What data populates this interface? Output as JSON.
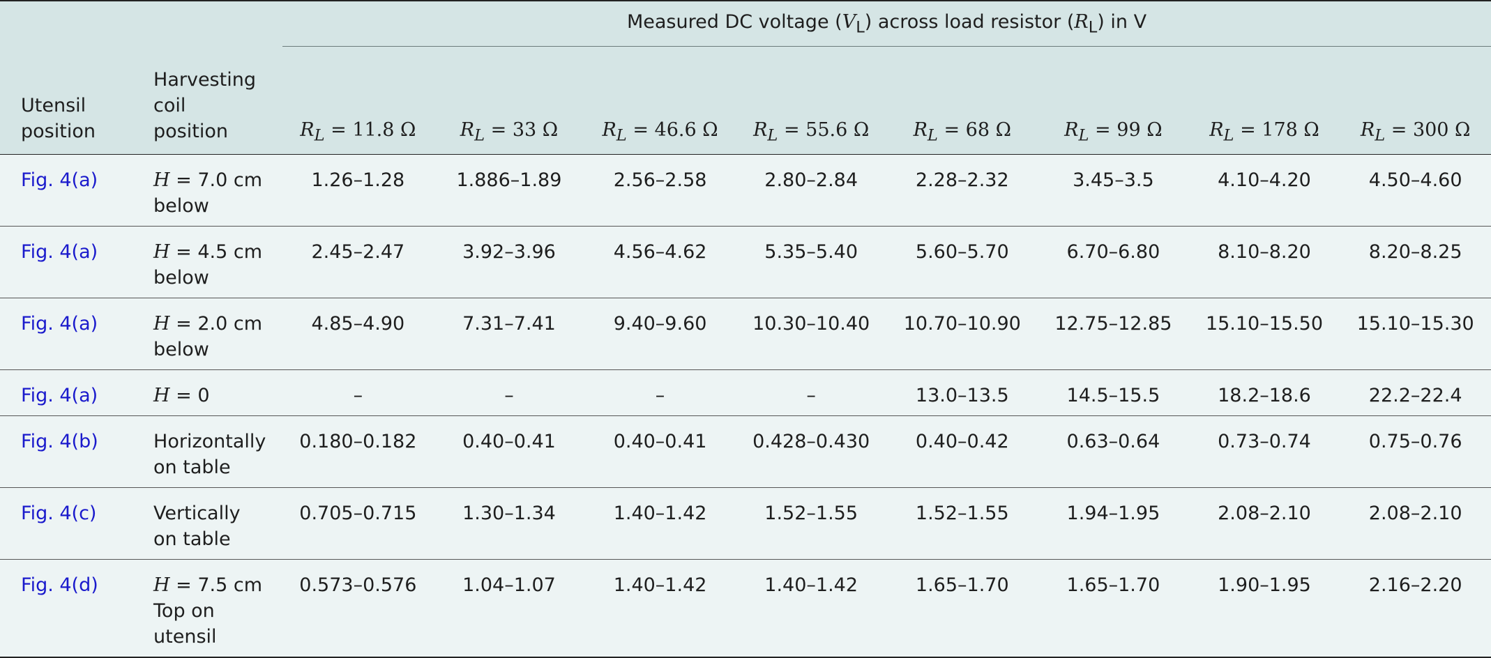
{
  "header": {
    "group_title_prefix": "Measured DC voltage (",
    "vl_symbol": "V",
    "vl_sub": "L",
    "group_title_mid": ") across load resistor (",
    "rl_symbol": "R",
    "rl_sub": "L",
    "group_title_suffix": ") in V",
    "col_utensil_line1": "Utensil",
    "col_utensil_line2": "position",
    "col_coil_line1": "Harvesting",
    "col_coil_line2": "coil",
    "col_coil_line3": "position",
    "resistances": [
      "11.8 Ω",
      "33 Ω",
      "46.6 Ω",
      "55.6 Ω",
      "68 Ω",
      "99 Ω",
      "178 Ω",
      "300 Ω"
    ]
  },
  "rows": [
    {
      "utensil": "Fig. 4(a)",
      "coil_var": "H",
      "coil_line1": " = 7.0 cm",
      "coil_line2": "below",
      "coil_line3": "",
      "values": [
        "1.26–1.28",
        "1.886–1.89",
        "2.56–2.58",
        "2.80–2.84",
        "2.28–2.32",
        "3.45–3.5",
        "4.10–4.20",
        "4.50–4.60"
      ]
    },
    {
      "utensil": "Fig. 4(a)",
      "coil_var": "H",
      "coil_line1": " = 4.5 cm",
      "coil_line2": "below",
      "coil_line3": "",
      "values": [
        "2.45–2.47",
        "3.92–3.96",
        "4.56–4.62",
        "5.35–5.40",
        "5.60–5.70",
        "6.70–6.80",
        "8.10–8.20",
        "8.20–8.25"
      ]
    },
    {
      "utensil": "Fig. 4(a)",
      "coil_var": "H",
      "coil_line1": " = 2.0 cm",
      "coil_line2": "below",
      "coil_line3": "",
      "values": [
        "4.85–4.90",
        "7.31–7.41",
        "9.40–9.60",
        "10.30–10.40",
        "10.70–10.90",
        "12.75–12.85",
        "15.10–15.50",
        "15.10–15.30"
      ]
    },
    {
      "utensil": "Fig. 4(a)",
      "coil_var": "H",
      "coil_line1": " = 0",
      "coil_line2": "",
      "coil_line3": "",
      "values": [
        "–",
        "–",
        "–",
        "–",
        "13.0–13.5",
        "14.5–15.5",
        "18.2–18.6",
        "22.2–22.4"
      ]
    },
    {
      "utensil": "Fig. 4(b)",
      "coil_var": "",
      "coil_line1": "Horizontally",
      "coil_line2": "on table",
      "coil_line3": "",
      "values": [
        "0.180–0.182",
        "0.40–0.41",
        "0.40–0.41",
        "0.428–0.430",
        "0.40–0.42",
        "0.63–0.64",
        "0.73–0.74",
        "0.75–0.76"
      ]
    },
    {
      "utensil": "Fig. 4(c)",
      "coil_var": "",
      "coil_line1": "Vertically",
      "coil_line2": "on table",
      "coil_line3": "",
      "values": [
        "0.705–0.715",
        "1.30–1.34",
        "1.40–1.42",
        "1.52–1.55",
        "1.52–1.55",
        "1.94–1.95",
        "2.08–2.10",
        "2.08–2.10"
      ]
    },
    {
      "utensil": "Fig. 4(d)",
      "coil_var": "H",
      "coil_line1": " = 7.5 cm",
      "coil_line2": "Top on",
      "coil_line3": "utensil",
      "values": [
        "0.573–0.576",
        "1.04–1.07",
        "1.40–1.42",
        "1.40–1.42",
        "1.65–1.70",
        "1.65–1.70",
        "1.90–1.95",
        "2.16–2.20"
      ]
    }
  ],
  "colors": {
    "header_bg": "#d5e5e5",
    "body_bg": "#edf4f4",
    "link": "#1a1acc"
  }
}
